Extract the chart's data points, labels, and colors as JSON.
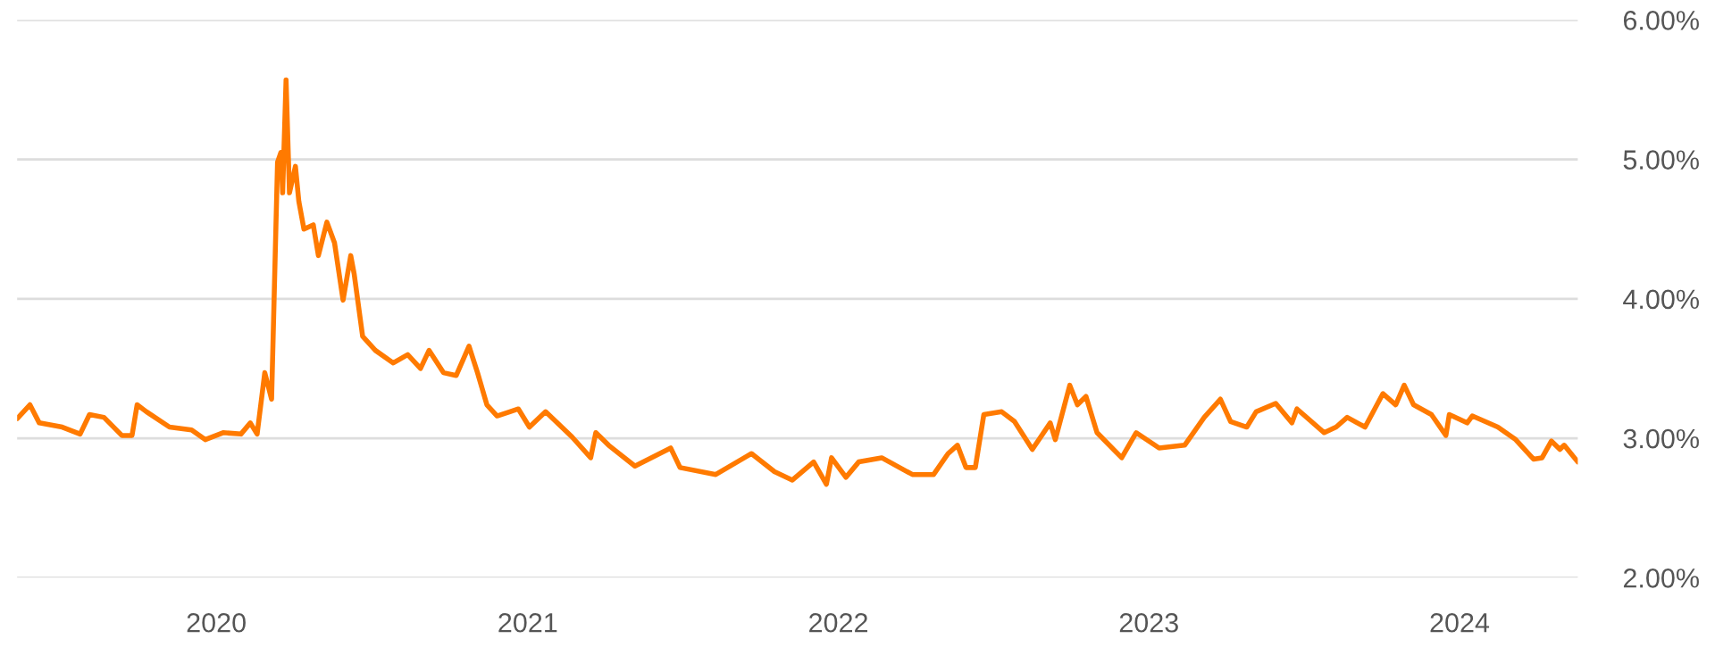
{
  "chart_data": {
    "type": "line",
    "series": [
      {
        "color": "#ff7a00",
        "x": [
          "2019-05-12",
          "2019-05-27",
          "2019-06-07",
          "2019-07-04",
          "2019-07-25",
          "2019-08-05",
          "2019-08-22",
          "2019-09-12",
          "2019-09-24",
          "2019-09-30",
          "2019-10-11",
          "2019-11-07",
          "2019-12-03",
          "2019-12-19",
          "2020-01-09",
          "2020-01-30",
          "2020-02-10",
          "2020-02-18",
          "2020-02-27",
          "2020-03-06",
          "2020-03-13",
          "2020-03-17",
          "2020-03-19",
          "2020-03-23",
          "2020-03-27",
          "2020-04-03",
          "2020-04-07",
          "2020-04-13",
          "2020-04-24",
          "2020-04-30",
          "2020-05-10",
          "2020-05-19",
          "2020-05-29",
          "2020-06-07",
          "2020-06-11",
          "2020-06-21",
          "2020-07-06",
          "2020-07-27",
          "2020-08-13",
          "2020-08-28",
          "2020-09-07",
          "2020-09-24",
          "2020-10-09",
          "2020-10-24",
          "2020-11-03",
          "2020-11-14",
          "2020-11-26",
          "2020-12-11",
          "2020-12-21",
          "2021-01-03",
          "2021-01-22",
          "2021-02-22",
          "2021-03-16",
          "2021-03-22",
          "2021-04-06",
          "2021-05-07",
          "2021-06-18",
          "2021-06-29",
          "2021-08-10",
          "2021-09-21",
          "2021-10-18",
          "2021-11-08",
          "2021-12-03",
          "2021-12-18",
          "2021-12-24",
          "2022-01-10",
          "2022-01-25",
          "2022-02-21",
          "2022-03-29",
          "2022-04-23",
          "2022-05-10",
          "2022-05-21",
          "2022-05-31",
          "2022-06-11",
          "2022-06-21",
          "2022-07-12",
          "2022-07-27",
          "2022-08-17",
          "2022-09-07",
          "2022-09-13",
          "2022-09-30",
          "2022-10-09",
          "2022-10-19",
          "2022-11-01",
          "2022-11-30",
          "2022-12-17",
          "2023-01-13",
          "2023-02-12",
          "2023-03-07",
          "2023-03-26",
          "2023-04-07",
          "2023-04-26",
          "2023-05-07",
          "2023-05-30",
          "2023-06-18",
          "2023-06-24",
          "2023-07-26",
          "2023-08-09",
          "2023-08-22",
          "2023-09-12",
          "2023-10-03",
          "2023-10-18",
          "2023-10-28",
          "2023-11-08",
          "2023-11-29",
          "2023-12-16",
          "2023-12-20",
          "2024-01-10",
          "2024-01-16",
          "2024-02-15",
          "2024-03-07",
          "2024-03-28",
          "2024-04-07",
          "2024-04-18",
          "2024-04-28",
          "2024-05-03",
          "2024-05-19"
        ],
        "values": [
          3.14,
          3.24,
          3.11,
          3.08,
          3.03,
          3.17,
          3.15,
          3.02,
          3.02,
          3.24,
          3.19,
          3.08,
          3.06,
          2.99,
          3.04,
          3.03,
          3.11,
          3.03,
          3.47,
          3.28,
          4.98,
          5.05,
          4.76,
          5.57,
          4.76,
          4.95,
          4.7,
          4.5,
          4.53,
          4.31,
          4.55,
          4.4,
          3.99,
          4.31,
          4.18,
          3.73,
          3.63,
          3.54,
          3.6,
          3.5,
          3.63,
          3.47,
          3.45,
          3.66,
          3.47,
          3.24,
          3.16,
          3.19,
          3.21,
          3.08,
          3.19,
          3.01,
          2.86,
          3.04,
          2.95,
          2.8,
          2.93,
          2.79,
          2.74,
          2.89,
          2.76,
          2.7,
          2.83,
          2.67,
          2.86,
          2.72,
          2.83,
          2.86,
          2.74,
          2.74,
          2.89,
          2.95,
          2.79,
          2.79,
          3.17,
          3.19,
          3.12,
          2.92,
          3.11,
          2.99,
          3.38,
          3.24,
          3.3,
          3.04,
          2.86,
          3.04,
          2.93,
          2.95,
          3.15,
          3.28,
          3.12,
          3.08,
          3.19,
          3.25,
          3.11,
          3.21,
          3.04,
          3.08,
          3.15,
          3.08,
          3.32,
          3.24,
          3.38,
          3.24,
          3.17,
          3.02,
          3.17,
          3.11,
          3.16,
          3.08,
          2.99,
          2.85,
          2.86,
          2.98,
          2.92,
          2.95,
          2.83
        ]
      }
    ],
    "xlim": [
      "2019-05-12",
      "2024-05-19"
    ],
    "xticks": [
      {
        "value": "2020-01-01",
        "label": "2020"
      },
      {
        "value": "2021-01-01",
        "label": "2021"
      },
      {
        "value": "2022-01-01",
        "label": "2022"
      },
      {
        "value": "2023-01-01",
        "label": "2023"
      },
      {
        "value": "2024-01-01",
        "label": "2024"
      }
    ],
    "ylim": [
      2,
      6
    ],
    "yticks": [
      {
        "value": 2,
        "label": "2.00%"
      },
      {
        "value": 3,
        "label": "3.00%"
      },
      {
        "value": 4,
        "label": "4.00%"
      },
      {
        "value": 5,
        "label": "5.00%"
      },
      {
        "value": 6,
        "label": "6.00%"
      }
    ],
    "grid": "y",
    "legend": false,
    "marker": "none",
    "line_style": "solid"
  }
}
